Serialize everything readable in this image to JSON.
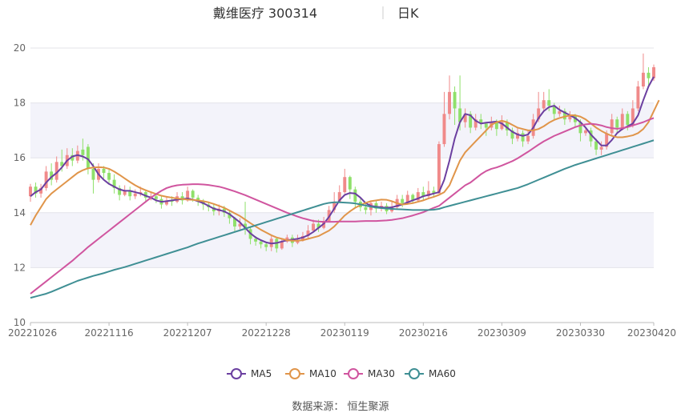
{
  "header": {
    "stock_name": "戴维医疗 300314",
    "period": "日K"
  },
  "source_text": "数据来源： 恒生聚源",
  "colors": {
    "up": "#f08a8a",
    "down": "#8fe06a",
    "band": "#f3f3fa",
    "grid": "#e3e3ea",
    "axis_text": "#666666",
    "title_text": "#333333",
    "MA5": "#6b3fa0",
    "MA10": "#e0954a",
    "MA30": "#d0559f",
    "MA60": "#3f8f94"
  },
  "chart_data": {
    "type": "candlestick",
    "ylim": [
      10,
      20
    ],
    "yticks": [
      10,
      12,
      14,
      16,
      18,
      20
    ],
    "x_tick_labels": [
      "20221026",
      "20221116",
      "20221207",
      "20221228",
      "20230119",
      "20230216",
      "20230309",
      "20230330",
      "20230420"
    ],
    "x_tick_index": [
      0,
      15,
      30,
      45,
      60,
      75,
      90,
      105,
      119
    ],
    "candles": [
      [
        14.6,
        14.95,
        14.4,
        15.05
      ],
      [
        14.95,
        14.7,
        14.55,
        15.1
      ],
      [
        14.7,
        14.9,
        14.55,
        15.05
      ],
      [
        14.9,
        15.5,
        14.8,
        15.7
      ],
      [
        15.5,
        15.2,
        15.0,
        15.8
      ],
      [
        15.2,
        15.85,
        15.1,
        16.05
      ],
      [
        15.85,
        15.7,
        15.5,
        16.3
      ],
      [
        15.7,
        16.1,
        15.6,
        16.35
      ],
      [
        16.1,
        15.9,
        15.7,
        16.35
      ],
      [
        15.9,
        16.25,
        15.8,
        16.45
      ],
      [
        16.3,
        16.1,
        15.9,
        16.7
      ],
      [
        16.4,
        15.6,
        15.4,
        16.5
      ],
      [
        15.6,
        15.2,
        14.7,
        15.8
      ],
      [
        15.2,
        15.6,
        15.1,
        15.8
      ],
      [
        15.6,
        15.45,
        15.25,
        15.7
      ],
      [
        15.45,
        15.2,
        15.05,
        15.6
      ],
      [
        15.2,
        14.9,
        14.7,
        15.4
      ],
      [
        14.9,
        14.65,
        14.45,
        15.0
      ],
      [
        14.65,
        14.8,
        14.6,
        15.0
      ],
      [
        14.8,
        14.6,
        14.45,
        14.95
      ],
      [
        14.6,
        14.7,
        14.5,
        14.85
      ],
      [
        14.7,
        14.75,
        14.6,
        14.95
      ],
      [
        14.75,
        14.55,
        14.4,
        14.85
      ],
      [
        14.55,
        14.6,
        14.45,
        14.75
      ],
      [
        14.6,
        14.5,
        14.35,
        14.7
      ],
      [
        14.5,
        14.3,
        14.15,
        14.6
      ],
      [
        14.3,
        14.45,
        14.25,
        14.6
      ],
      [
        14.45,
        14.4,
        14.25,
        14.6
      ],
      [
        14.4,
        14.6,
        14.35,
        14.75
      ],
      [
        14.6,
        14.45,
        14.3,
        14.75
      ],
      [
        14.45,
        14.8,
        14.4,
        14.95
      ],
      [
        14.8,
        14.55,
        14.4,
        14.85
      ],
      [
        14.55,
        14.4,
        14.25,
        14.65
      ],
      [
        14.4,
        14.3,
        14.1,
        14.5
      ],
      [
        14.3,
        14.2,
        14.05,
        14.4
      ],
      [
        14.2,
        14.05,
        13.9,
        14.3
      ],
      [
        14.05,
        14.15,
        13.9,
        14.3
      ],
      [
        14.15,
        14.0,
        13.85,
        14.25
      ],
      [
        14.0,
        13.8,
        13.6,
        14.1
      ],
      [
        13.8,
        13.5,
        13.3,
        13.85
      ],
      [
        13.5,
        13.6,
        13.4,
        13.8
      ],
      [
        13.6,
        13.4,
        13.2,
        14.4
      ],
      [
        13.4,
        13.05,
        12.85,
        13.5
      ],
      [
        13.05,
        12.95,
        12.8,
        13.15
      ],
      [
        12.95,
        12.85,
        12.7,
        13.0
      ],
      [
        12.85,
        12.75,
        12.6,
        12.95
      ],
      [
        12.75,
        13.05,
        12.6,
        13.15
      ],
      [
        13.05,
        12.7,
        12.55,
        13.1
      ],
      [
        12.7,
        12.95,
        12.65,
        13.05
      ],
      [
        12.95,
        13.1,
        12.9,
        13.2
      ],
      [
        13.1,
        12.9,
        12.75,
        13.2
      ],
      [
        12.9,
        13.0,
        12.85,
        13.2
      ],
      [
        13.0,
        13.15,
        12.95,
        13.3
      ],
      [
        13.15,
        13.35,
        13.05,
        13.55
      ],
      [
        13.35,
        13.6,
        13.3,
        13.75
      ],
      [
        13.6,
        13.45,
        13.3,
        13.75
      ],
      [
        13.45,
        13.7,
        13.4,
        13.85
      ],
      [
        13.7,
        14.1,
        13.65,
        14.25
      ],
      [
        14.1,
        14.4,
        14.0,
        14.75
      ],
      [
        14.4,
        14.75,
        14.35,
        15.0
      ],
      [
        14.75,
        15.3,
        14.7,
        15.6
      ],
      [
        15.3,
        14.85,
        14.5,
        15.35
      ],
      [
        14.85,
        14.4,
        14.2,
        14.95
      ],
      [
        14.4,
        14.2,
        14.05,
        14.55
      ],
      [
        14.2,
        14.1,
        13.95,
        14.35
      ],
      [
        14.1,
        14.35,
        13.9,
        14.45
      ],
      [
        14.35,
        14.15,
        14.0,
        14.45
      ],
      [
        14.15,
        14.25,
        14.05,
        14.4
      ],
      [
        14.25,
        14.05,
        13.95,
        14.35
      ],
      [
        14.05,
        14.2,
        14.0,
        14.4
      ],
      [
        14.2,
        14.5,
        14.15,
        14.65
      ],
      [
        14.5,
        14.35,
        14.2,
        14.65
      ],
      [
        14.35,
        14.65,
        14.3,
        14.8
      ],
      [
        14.65,
        14.45,
        14.35,
        14.7
      ],
      [
        14.45,
        14.75,
        14.4,
        14.9
      ],
      [
        14.75,
        14.6,
        14.45,
        14.95
      ],
      [
        14.6,
        14.8,
        14.5,
        15.15
      ],
      [
        14.8,
        14.7,
        14.55,
        14.95
      ],
      [
        14.7,
        16.5,
        14.7,
        16.6
      ],
      [
        16.5,
        17.6,
        16.4,
        18.4
      ],
      [
        17.6,
        18.4,
        17.4,
        19.0
      ],
      [
        18.4,
        17.8,
        17.2,
        18.6
      ],
      [
        17.8,
        17.3,
        17.0,
        19.0
      ],
      [
        17.3,
        17.6,
        17.1,
        17.8
      ],
      [
        17.6,
        17.1,
        16.9,
        17.7
      ],
      [
        17.1,
        17.4,
        17.0,
        17.6
      ],
      [
        17.4,
        17.25,
        17.05,
        17.6
      ],
      [
        17.25,
        17.1,
        16.8,
        17.3
      ],
      [
        17.1,
        17.3,
        17.0,
        17.5
      ],
      [
        17.3,
        17.05,
        16.8,
        17.4
      ],
      [
        17.05,
        17.3,
        17.0,
        17.55
      ],
      [
        17.3,
        17.0,
        16.8,
        17.4
      ],
      [
        17.0,
        16.7,
        16.5,
        17.1
      ],
      [
        16.7,
        16.9,
        16.6,
        17.1
      ],
      [
        16.9,
        16.6,
        16.4,
        17.0
      ],
      [
        16.6,
        16.8,
        16.5,
        17.0
      ],
      [
        16.8,
        17.4,
        16.7,
        17.6
      ],
      [
        17.4,
        17.8,
        17.3,
        18.4
      ],
      [
        17.8,
        18.1,
        17.7,
        18.4
      ],
      [
        18.1,
        17.9,
        17.7,
        18.5
      ],
      [
        17.9,
        17.6,
        17.4,
        18.0
      ],
      [
        17.6,
        17.7,
        17.5,
        17.9
      ],
      [
        17.7,
        17.4,
        17.2,
        17.8
      ],
      [
        17.4,
        17.55,
        17.3,
        17.7
      ],
      [
        17.55,
        17.3,
        17.1,
        17.6
      ],
      [
        17.3,
        16.9,
        16.6,
        17.4
      ],
      [
        16.9,
        17.0,
        16.8,
        17.1
      ],
      [
        17.0,
        16.6,
        16.4,
        17.1
      ],
      [
        16.6,
        16.3,
        16.1,
        16.7
      ],
      [
        16.3,
        16.4,
        16.1,
        16.6
      ],
      [
        16.4,
        16.9,
        16.3,
        17.0
      ],
      [
        16.9,
        17.4,
        16.8,
        17.6
      ],
      [
        17.4,
        17.1,
        16.9,
        17.5
      ],
      [
        17.1,
        17.6,
        17.0,
        17.8
      ],
      [
        17.6,
        17.2,
        17.0,
        17.7
      ],
      [
        17.2,
        17.8,
        17.1,
        18.1
      ],
      [
        17.8,
        18.6,
        17.7,
        18.8
      ],
      [
        18.6,
        19.1,
        18.5,
        19.8
      ],
      [
        19.1,
        18.9,
        18.6,
        19.3
      ],
      [
        18.9,
        19.3,
        18.8,
        19.4
      ]
    ],
    "series": [
      {
        "name": "MA5",
        "values": [
          14.6,
          14.75,
          14.85,
          15.1,
          15.3,
          15.45,
          15.65,
          15.9,
          16.05,
          16.1,
          16.05,
          15.95,
          15.7,
          15.4,
          15.2,
          15.05,
          14.95,
          14.85,
          14.8,
          14.8,
          14.75,
          14.7,
          14.62,
          14.55,
          14.45,
          14.4,
          14.42,
          14.45,
          14.48,
          14.5,
          14.52,
          14.48,
          14.42,
          14.35,
          14.25,
          14.15,
          14.1,
          14.05,
          13.95,
          13.8,
          13.65,
          13.45,
          13.25,
          13.1,
          13.0,
          12.92,
          12.88,
          12.9,
          12.95,
          13.0,
          13.02,
          13.05,
          13.1,
          13.18,
          13.3,
          13.45,
          13.6,
          13.85,
          14.15,
          14.45,
          14.65,
          14.72,
          14.7,
          14.55,
          14.35,
          14.25,
          14.22,
          14.2,
          14.18,
          14.2,
          14.25,
          14.3,
          14.38,
          14.45,
          14.52,
          14.6,
          14.65,
          14.7,
          14.75,
          15.2,
          15.9,
          16.7,
          17.3,
          17.6,
          17.55,
          17.35,
          17.25,
          17.28,
          17.3,
          17.32,
          17.25,
          17.1,
          16.95,
          16.85,
          16.8,
          16.85,
          17.1,
          17.45,
          17.7,
          17.85,
          17.9,
          17.75,
          17.65,
          17.55,
          17.45,
          17.3,
          17.1,
          16.85,
          16.65,
          16.45,
          16.45,
          16.65,
          16.9,
          17.05,
          17.15,
          17.25,
          17.55,
          18.1,
          18.6,
          18.95
        ]
      },
      {
        "name": "MA10",
        "values": [
          13.55,
          13.9,
          14.2,
          14.5,
          14.7,
          14.85,
          15.0,
          15.15,
          15.3,
          15.45,
          15.55,
          15.62,
          15.65,
          15.66,
          15.65,
          15.6,
          15.5,
          15.38,
          15.25,
          15.12,
          15.0,
          14.9,
          14.82,
          14.75,
          14.68,
          14.62,
          14.58,
          14.55,
          14.52,
          14.5,
          14.48,
          14.47,
          14.45,
          14.42,
          14.38,
          14.32,
          14.25,
          14.18,
          14.08,
          13.98,
          13.88,
          13.75,
          13.62,
          13.5,
          13.38,
          13.28,
          13.18,
          13.1,
          13.05,
          13.0,
          12.98,
          12.98,
          13.0,
          13.05,
          13.1,
          13.15,
          13.25,
          13.35,
          13.5,
          13.7,
          13.9,
          14.05,
          14.18,
          14.28,
          14.36,
          14.42,
          14.45,
          14.48,
          14.47,
          14.42,
          14.35,
          14.3,
          14.32,
          14.35,
          14.4,
          14.45,
          14.52,
          14.58,
          14.65,
          14.75,
          15.0,
          15.45,
          15.9,
          16.2,
          16.4,
          16.6,
          16.8,
          17.0,
          17.2,
          17.3,
          17.35,
          17.3,
          17.2,
          17.1,
          17.05,
          17.0,
          17.0,
          17.05,
          17.15,
          17.28,
          17.38,
          17.45,
          17.5,
          17.55,
          17.55,
          17.5,
          17.4,
          17.25,
          17.1,
          16.98,
          16.88,
          16.8,
          16.75,
          16.75,
          16.78,
          16.82,
          16.9,
          17.05,
          17.3,
          17.7,
          18.1
        ]
      },
      {
        "name": "MA30",
        "values": [
          11.05,
          11.2,
          11.35,
          11.5,
          11.65,
          11.8,
          11.95,
          12.1,
          12.25,
          12.42,
          12.58,
          12.75,
          12.9,
          13.05,
          13.2,
          13.35,
          13.5,
          13.65,
          13.8,
          13.95,
          14.1,
          14.25,
          14.4,
          14.55,
          14.68,
          14.8,
          14.9,
          14.96,
          15.0,
          15.02,
          15.03,
          15.04,
          15.04,
          15.03,
          15.01,
          14.98,
          14.95,
          14.9,
          14.84,
          14.78,
          14.71,
          14.64,
          14.56,
          14.48,
          14.4,
          14.32,
          14.24,
          14.16,
          14.08,
          14.0,
          13.93,
          13.86,
          13.8,
          13.75,
          13.7,
          13.68,
          13.67,
          13.67,
          13.67,
          13.68,
          13.68,
          13.68,
          13.68,
          13.69,
          13.7,
          13.7,
          13.7,
          13.71,
          13.72,
          13.74,
          13.77,
          13.8,
          13.85,
          13.9,
          13.96,
          14.02,
          14.1,
          14.18,
          14.25,
          14.4,
          14.55,
          14.7,
          14.85,
          15.0,
          15.1,
          15.25,
          15.4,
          15.52,
          15.6,
          15.65,
          15.72,
          15.8,
          15.88,
          15.98,
          16.1,
          16.22,
          16.35,
          16.48,
          16.6,
          16.7,
          16.8,
          16.88,
          16.96,
          17.04,
          17.12,
          17.18,
          17.22,
          17.24,
          17.22,
          17.18,
          17.12,
          17.08,
          17.06,
          17.08,
          17.12,
          17.18,
          17.24,
          17.3,
          17.38,
          17.45
        ]
      },
      {
        "name": "MA60",
        "values": [
          10.9,
          10.95,
          11.0,
          11.05,
          11.12,
          11.2,
          11.28,
          11.36,
          11.44,
          11.52,
          11.58,
          11.64,
          11.7,
          11.75,
          11.8,
          11.86,
          11.92,
          11.97,
          12.02,
          12.08,
          12.14,
          12.2,
          12.26,
          12.32,
          12.38,
          12.44,
          12.5,
          12.56,
          12.62,
          12.68,
          12.74,
          12.81,
          12.88,
          12.94,
          13.0,
          13.06,
          13.12,
          13.18,
          13.24,
          13.3,
          13.36,
          13.42,
          13.48,
          13.54,
          13.6,
          13.66,
          13.72,
          13.78,
          13.84,
          13.9,
          13.96,
          14.02,
          14.08,
          14.14,
          14.2,
          14.26,
          14.32,
          14.36,
          14.38,
          14.38,
          14.37,
          14.36,
          14.34,
          14.3,
          14.26,
          14.22,
          14.19,
          14.17,
          14.15,
          14.14,
          14.13,
          14.12,
          14.11,
          14.1,
          14.1,
          14.1,
          14.1,
          14.11,
          14.14,
          14.2,
          14.25,
          14.3,
          14.35,
          14.4,
          14.45,
          14.5,
          14.55,
          14.6,
          14.65,
          14.7,
          14.75,
          14.8,
          14.85,
          14.9,
          14.97,
          15.04,
          15.12,
          15.2,
          15.28,
          15.36,
          15.44,
          15.52,
          15.6,
          15.67,
          15.74,
          15.8,
          15.86,
          15.92,
          15.98,
          16.04,
          16.1,
          16.16,
          16.22,
          16.28,
          16.34,
          16.4,
          16.46,
          16.52,
          16.58,
          16.64
        ]
      }
    ]
  }
}
